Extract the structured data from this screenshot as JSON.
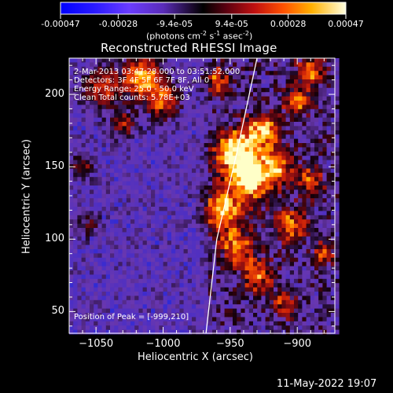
{
  "colorbar": {
    "tick_labels": [
      "-0.00047",
      "-0.00028",
      "-9.4e-05",
      "9.4e-05",
      "0.00028",
      "0.00047"
    ],
    "tick_values": [
      -0.00047,
      -0.00028,
      -9.4e-05,
      9.4e-05,
      0.00028,
      0.00047
    ],
    "unit_main": "(photons cm",
    "unit_exp1": "-2",
    "unit_mid": " s",
    "unit_exp2": "-1",
    "unit_tail": " asec",
    "unit_exp3": "-2",
    "unit_close": ")",
    "range": [
      -0.00047,
      0.00047
    ]
  },
  "chart_data": {
    "type": "heatmap",
    "title": "Reconstructed RHESSI Image",
    "xlabel": "Heliocentric X (arcsec)",
    "ylabel": "Heliocentric Y (arcsec)",
    "xlim": [
      -1070,
      -872
    ],
    "ylim": [
      35,
      225
    ],
    "x_ticks": [
      -1050,
      -1000,
      -950,
      -900
    ],
    "y_ticks": [
      50,
      100,
      150,
      200
    ],
    "x_tick_labels": [
      "−1050",
      "−1000",
      "−950",
      "−900"
    ],
    "y_tick_labels": [
      "50",
      "100",
      "150",
      "200"
    ],
    "info_lines": [
      " 2-Mar-2013 03:47:28.000 to 03:51:52.000",
      "Detectors: 3F 4F 5F 6F 7F 8F, All 0",
      "Energy Range: 25.0 - 50.0 keV",
      "Clean     Total counts: 5.78E+03"
    ],
    "peak_label": "Position of Peak = [-999,210]",
    "peak_position": [
      -999,
      210
    ],
    "limb": [
      [
        -968,
        35
      ],
      [
        -960,
        100
      ],
      [
        -945,
        160
      ],
      [
        -930,
        225
      ]
    ]
  },
  "footer": {
    "date": "11-May-2022 19:07"
  }
}
